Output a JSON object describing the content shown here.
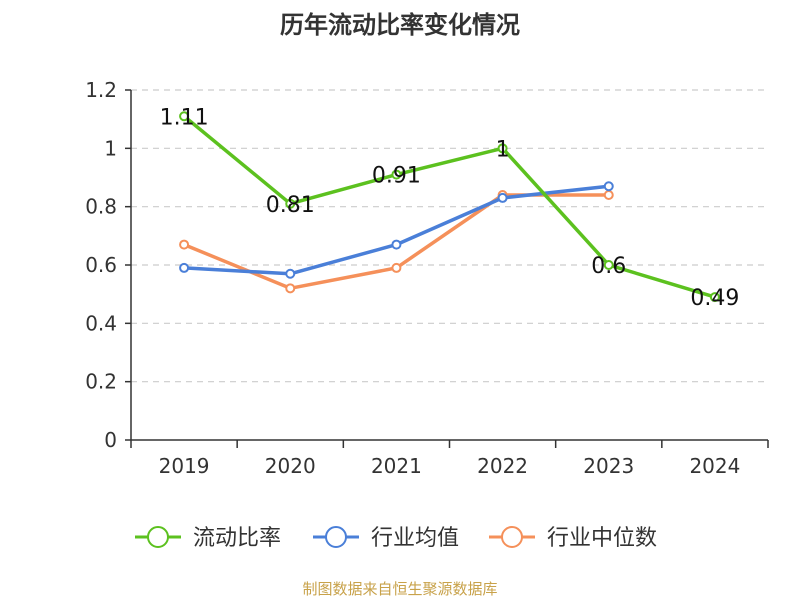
{
  "chart_data": {
    "type": "line",
    "title": "历年流动比率变化情况",
    "categories": [
      "2019",
      "2020",
      "2021",
      "2022",
      "2023",
      "2024"
    ],
    "ylim": [
      0,
      1.2
    ],
    "yticks": [
      "0",
      "0.2",
      "0.4",
      "0.6",
      "0.8",
      "1",
      "1.2"
    ],
    "grid": true,
    "legend_position": "bottom",
    "series": [
      {
        "name": "流动比率",
        "color": "#5cc11f",
        "values": [
          1.11,
          0.81,
          0.91,
          1.0,
          0.6,
          0.49
        ],
        "labels": [
          "1.11",
          "0.81",
          "0.91",
          "1",
          "0.6",
          "0.49"
        ]
      },
      {
        "name": "行业均值",
        "color": "#4a7fd8",
        "values": [
          0.59,
          0.57,
          0.67,
          0.83,
          0.87,
          null
        ]
      },
      {
        "name": "行业中位数",
        "color": "#f5905a",
        "values": [
          0.67,
          0.52,
          0.59,
          0.84,
          0.84,
          null
        ]
      }
    ],
    "source": "制图数据来自恒生聚源数据库"
  }
}
